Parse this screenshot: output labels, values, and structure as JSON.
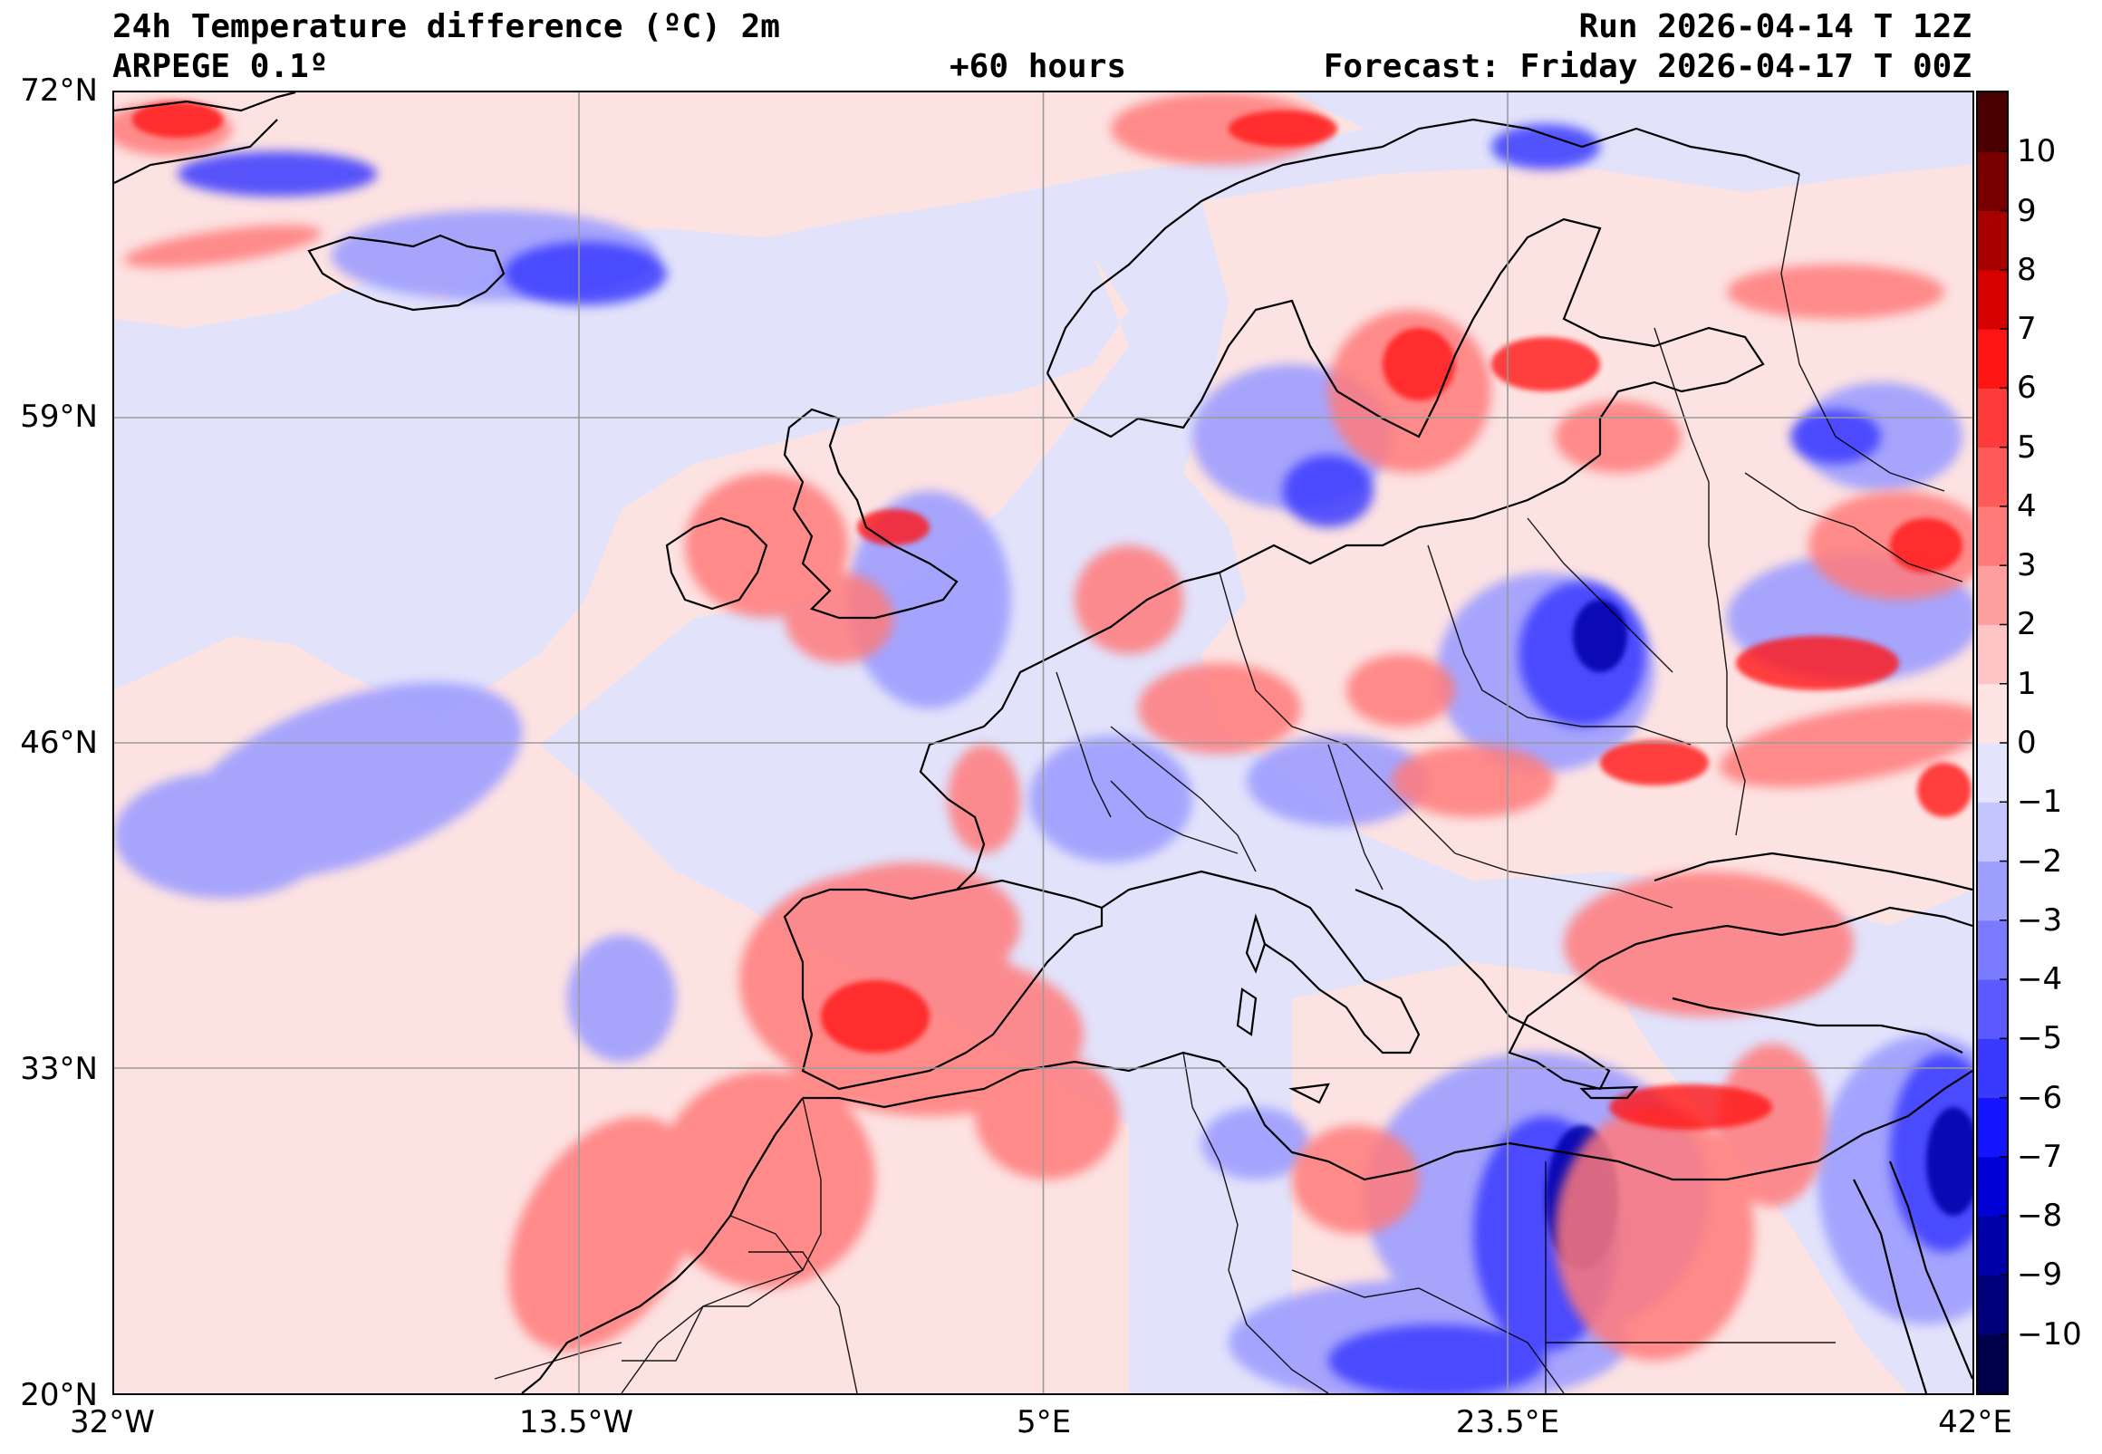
{
  "header": {
    "title": "24h Temperature difference (ºC) 2m",
    "model": "ARPEGE 0.1º",
    "lead_time": "+60 hours",
    "run": "Run 2026-04-14 T 12Z",
    "forecast": "Forecast: Friday 2026-04-17 T 00Z"
  },
  "axes": {
    "lon_labels": [
      "32°W",
      "13.5°W",
      "5°E",
      "23.5°E",
      "42°E"
    ],
    "lat_labels": [
      "72°N",
      "59°N",
      "46°N",
      "33°N",
      "20°N"
    ],
    "lon_values": [
      -32,
      -13.5,
      5,
      23.5,
      42
    ],
    "lat_values": [
      72,
      59,
      46,
      33,
      20
    ],
    "lon_range": [
      -32,
      42
    ],
    "lat_range": [
      20,
      72
    ]
  },
  "colorbar": {
    "ticks": [
      "10",
      "9",
      "8",
      "7",
      "6",
      "5",
      "4",
      "3",
      "2",
      "1",
      "0",
      "−1",
      "−2",
      "−3",
      "−4",
      "−5",
      "−6",
      "−7",
      "−8",
      "−9",
      "−10"
    ],
    "tick_values": [
      10,
      9,
      8,
      7,
      6,
      5,
      4,
      3,
      2,
      1,
      0,
      -1,
      -2,
      -3,
      -4,
      -5,
      -6,
      -7,
      -8,
      -9,
      -10
    ],
    "range": [
      -11,
      11
    ],
    "colors_low_to_high": [
      "#00004a",
      "#00007a",
      "#0000a8",
      "#0000d6",
      "#1414ff",
      "#3a3aff",
      "#5a5aff",
      "#7a7aff",
      "#9e9eff",
      "#c4c4ff",
      "#e4e4ff",
      "#ffe4e4",
      "#ffc4c4",
      "#ff9e9e",
      "#ff7a7a",
      "#ff5a5a",
      "#ff3a3a",
      "#ff1414",
      "#d60000",
      "#a80000",
      "#7a0000",
      "#4a0000"
    ]
  },
  "palette": {
    "ocean_neg": "#e2e2fb",
    "ocean_pos": "#fde2e2",
    "coast": "#000000"
  }
}
